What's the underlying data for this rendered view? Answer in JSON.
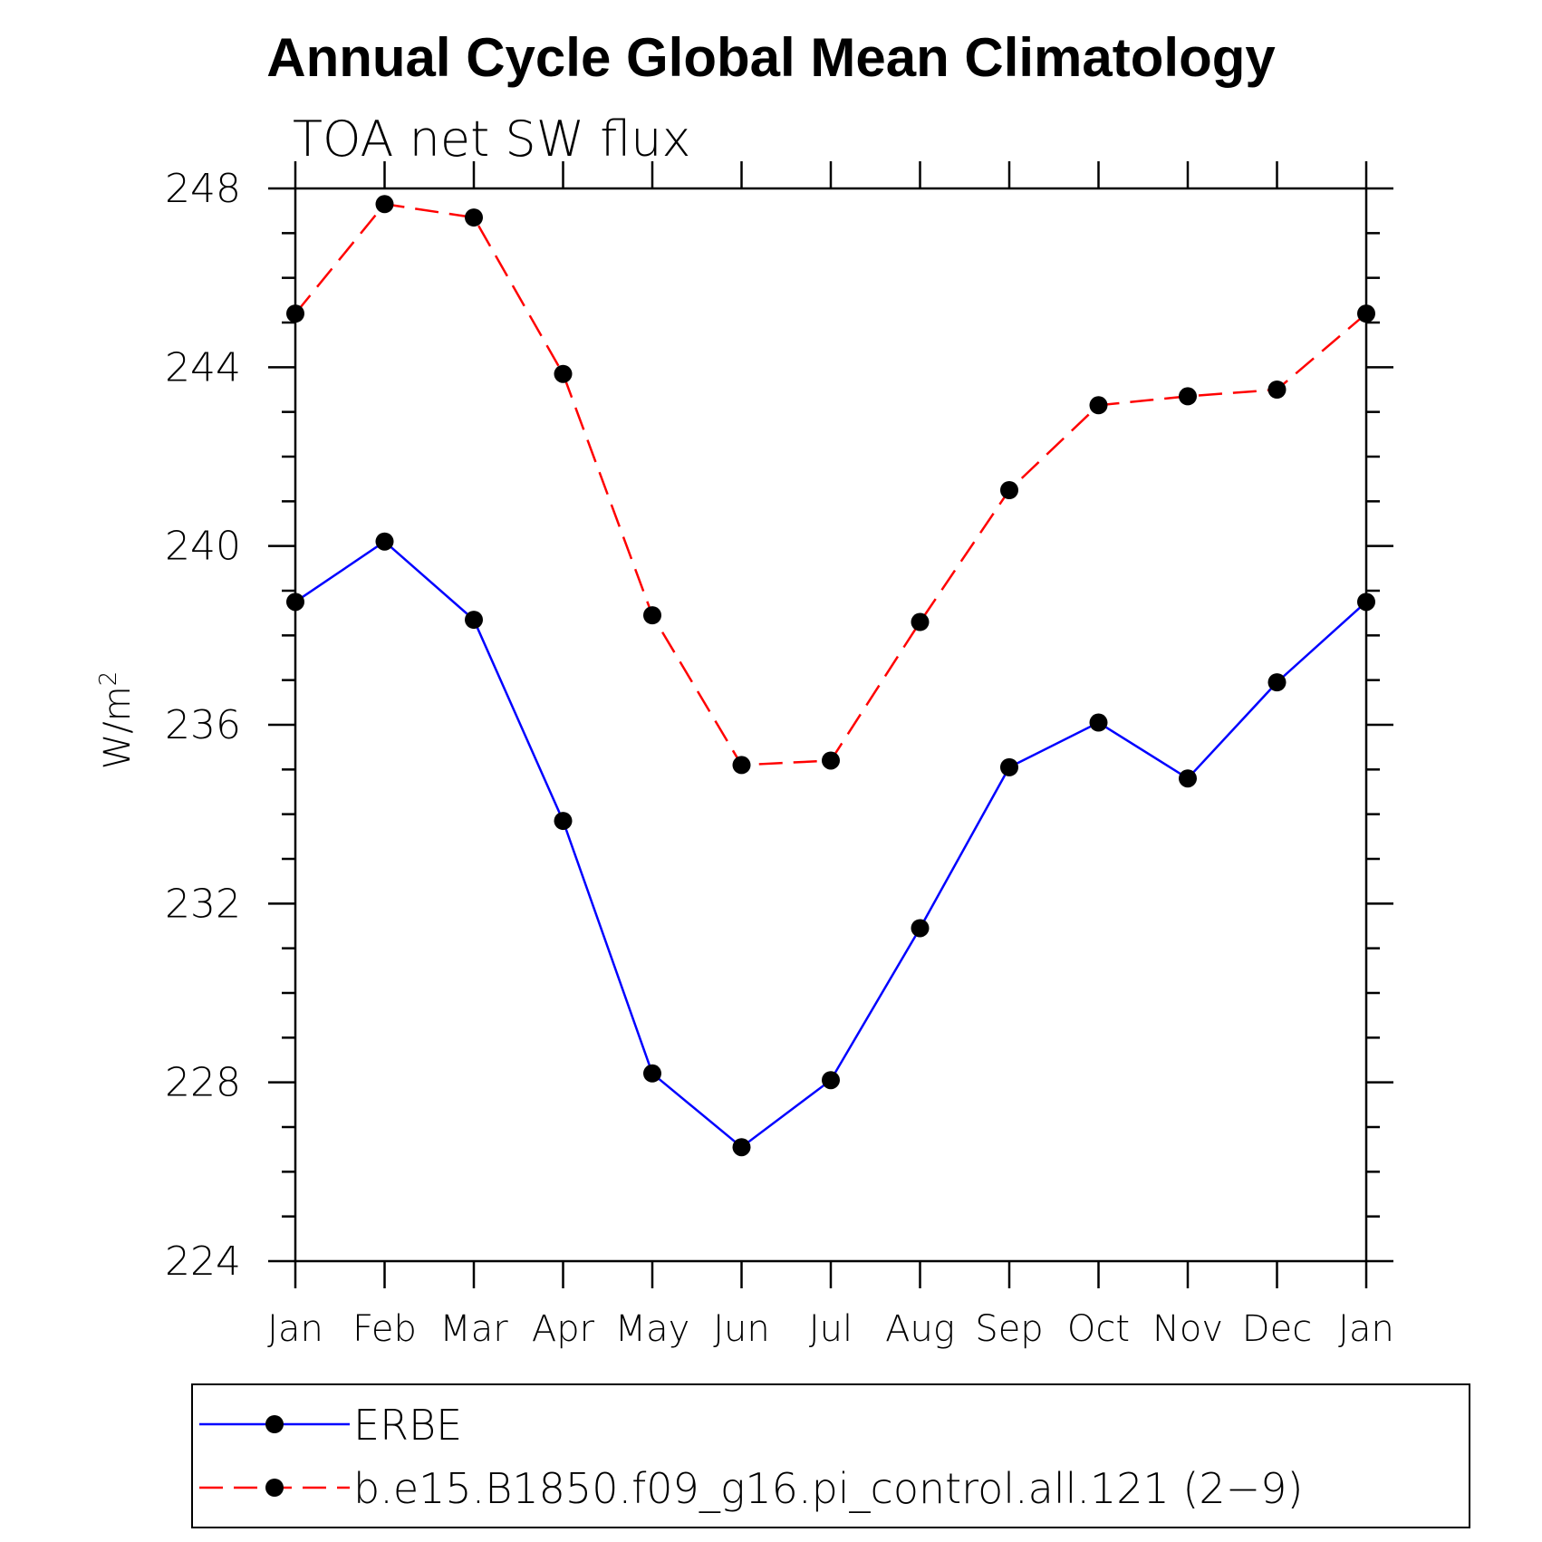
{
  "chart_data": {
    "type": "line",
    "title": "Annual Cycle Global Mean Climatology",
    "subtitle": "TOA net SW flux",
    "ylabel": "W/m",
    "ylabel_superscript": "2",
    "xlabel": "",
    "categories": [
      "Jan",
      "Feb",
      "Mar",
      "Apr",
      "May",
      "Jun",
      "Jul",
      "Aug",
      "Sep",
      "Oct",
      "Nov",
      "Dec",
      "Jan"
    ],
    "ylim": [
      224,
      248
    ],
    "yticks": [
      224,
      228,
      232,
      236,
      240,
      244,
      248
    ],
    "yticks_labels": [
      "224",
      "228",
      "232",
      "236",
      "240",
      "244",
      "248"
    ],
    "grid": false,
    "legend_position": "bottom",
    "series": [
      {
        "name": "ERBE",
        "color": "#0000ff",
        "dash": "solid",
        "marker": "filled-circle",
        "values": [
          238.75,
          240.1,
          238.35,
          233.85,
          228.2,
          226.55,
          228.05,
          231.45,
          235.05,
          236.05,
          234.8,
          236.95,
          238.75
        ]
      },
      {
        "name": "b.e15.B1850.f09_g16.pi_control.all.121 (2−9)",
        "color": "#ff0000",
        "dash": "dashed",
        "marker": "filled-circle",
        "values": [
          245.2,
          247.65,
          247.35,
          243.85,
          238.45,
          235.1,
          235.2,
          238.3,
          241.25,
          243.15,
          243.35,
          243.5,
          245.2
        ]
      }
    ]
  }
}
